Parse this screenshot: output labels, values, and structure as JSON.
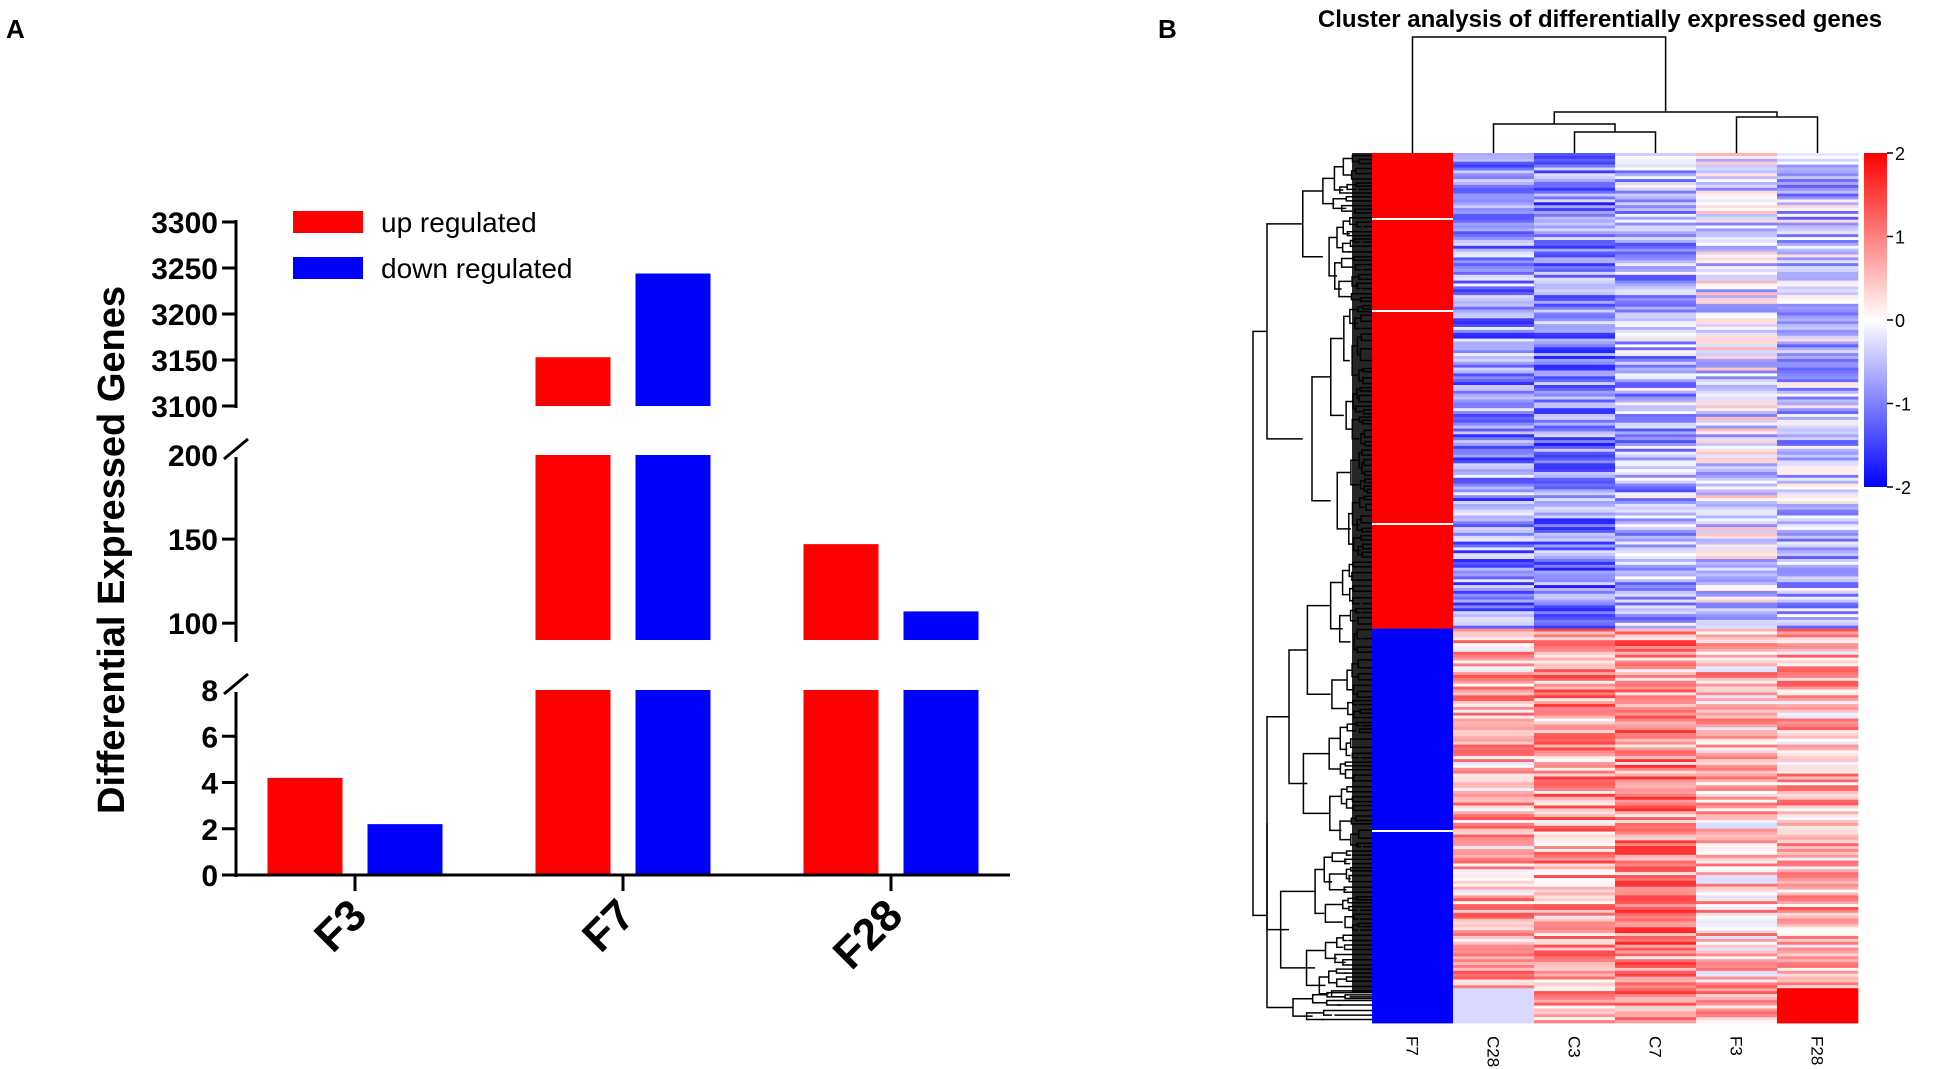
{
  "panels": {
    "a_label": "A",
    "b_label": "B"
  },
  "colors": {
    "up": "#ff0000",
    "down": "#0000ff"
  },
  "chart_data": [
    {
      "type": "bar",
      "ylabel": "Differential Expressed Genes",
      "xlabel": "",
      "categories": [
        "F3",
        "F7",
        "F28"
      ],
      "series": [
        {
          "name": "up regulated",
          "values": [
            4.2,
            3153,
            147
          ]
        },
        {
          "name": "down regulated",
          "values": [
            2.2,
            3244,
            107
          ]
        }
      ],
      "broken_axis_segments": [
        {
          "ylim": [
            0,
            8
          ],
          "ticks": [
            0,
            2,
            4,
            6,
            8
          ]
        },
        {
          "ylim": [
            90,
            200
          ],
          "ticks": [
            100,
            150,
            200
          ]
        },
        {
          "ylim": [
            3100,
            3300
          ],
          "ticks": [
            3100,
            3150,
            3200,
            3250,
            3300
          ]
        }
      ],
      "legend": "top-left"
    },
    {
      "type": "heatmap",
      "title": "Cluster analysis of differentially expressed genes",
      "columns": [
        "F7",
        "C28",
        "C3",
        "C7",
        "F3",
        "F28"
      ],
      "colorbar": {
        "min": -2,
        "max": 2,
        "ticks": [
          "2",
          "1",
          "0",
          "-1",
          "-2"
        ]
      },
      "row_dendrogram": true,
      "column_dendrogram": true
    }
  ]
}
